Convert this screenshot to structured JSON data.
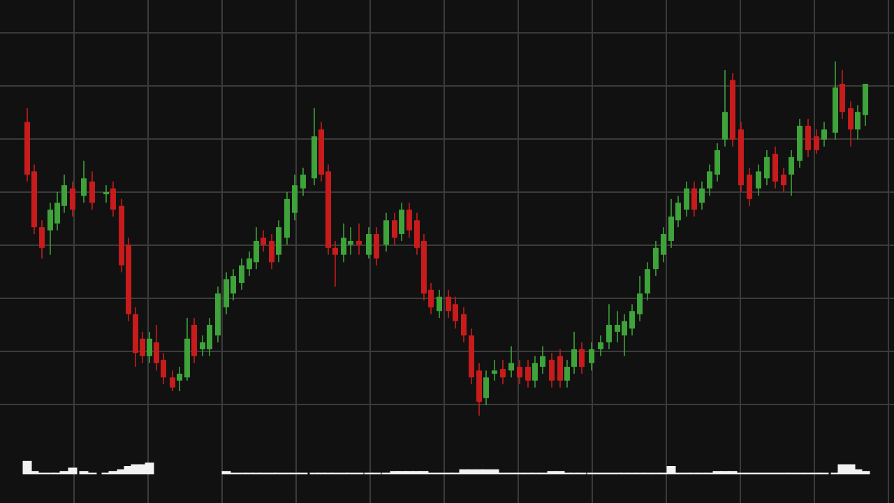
{
  "chart_data": {
    "type": "candlestick",
    "up_color": "#3ea33a",
    "down_color": "#c81c1c",
    "volume_color": "#f2f2f2",
    "grid": true,
    "xlim": [
      0,
      12
    ],
    "xticks": [
      1,
      2,
      3,
      4,
      5,
      6,
      7,
      8,
      9,
      10,
      11,
      12
    ],
    "ylim": [
      0,
      80
    ],
    "yticks": [
      10,
      20,
      30,
      40,
      50,
      60,
      70,
      80
    ],
    "y2lim": [
      0,
      10
    ],
    "x": [
      0.368,
      0.462,
      0.566,
      0.679,
      0.774,
      0.868,
      0.981,
      1.132,
      1.245,
      1.434,
      1.528,
      1.642,
      1.736,
      1.83,
      1.925,
      2.019,
      2.113,
      2.208,
      2.33,
      2.425,
      2.528,
      2.623,
      2.736,
      2.83,
      2.943,
      3.057,
      3.151,
      3.264,
      3.368,
      3.462,
      3.557,
      3.67,
      3.764,
      3.877,
      3.981,
      4.094,
      4.245,
      4.34,
      4.434,
      4.528,
      4.642,
      4.736,
      4.849,
      4.981,
      5.085,
      5.217,
      5.33,
      5.425,
      5.528,
      5.632,
      5.726,
      5.821,
      5.934,
      6.057,
      6.151,
      6.264,
      6.368,
      6.472,
      6.566,
      6.679,
      6.792,
      6.906,
      7.019,
      7.132,
      7.226,
      7.33,
      7.453,
      7.566,
      7.66,
      7.755,
      7.858,
      7.991,
      8.113,
      8.226,
      8.34,
      8.434,
      8.538,
      8.642,
      8.745,
      8.858,
      8.962,
      9.066,
      9.16,
      9.274,
      9.377,
      9.481,
      9.585,
      9.689,
      9.792,
      9.896,
      10.009,
      10.123,
      10.245,
      10.358,
      10.472,
      10.585,
      10.689,
      10.802,
      10.915,
      11.028,
      11.132,
      11.283,
      11.377,
      11.491,
      11.585,
      11.689
    ],
    "open": [
      63.2,
      53.9,
      43.4,
      42.8,
      44.1,
      47.4,
      50.7,
      49.3,
      52.0,
      49.6,
      50.7,
      47.4,
      40.1,
      27.0,
      22.4,
      19.1,
      21.7,
      18.4,
      15.1,
      14.5,
      15.1,
      25.0,
      20.4,
      20.4,
      23.0,
      28.3,
      30.9,
      32.9,
      35.5,
      36.8,
      41.4,
      40.8,
      38.2,
      41.4,
      46.1,
      50.7,
      52.6,
      61.8,
      53.9,
      39.5,
      38.2,
      40.1,
      40.8,
      38.2,
      42.1,
      40.1,
      44.7,
      42.1,
      46.7,
      44.7,
      40.8,
      31.6,
      27.6,
      30.3,
      28.9,
      27.0,
      23.0,
      16.4,
      11.2,
      15.8,
      16.7,
      16.4,
      17.1,
      17.1,
      14.5,
      17.1,
      18.4,
      19.1,
      14.5,
      17.1,
      20.4,
      17.8,
      20.4,
      21.7,
      23.7,
      23.0,
      24.3,
      27.0,
      30.9,
      35.5,
      38.2,
      40.8,
      44.7,
      46.7,
      50.7,
      48.0,
      50.7,
      53.3,
      59.9,
      71.1,
      61.8,
      53.3,
      50.7,
      52.6,
      57.2,
      53.3,
      53.3,
      55.9,
      62.5,
      60.5,
      59.9,
      61.2,
      70.4,
      65.8,
      61.8,
      64.5
    ],
    "high": [
      65.8,
      55.2,
      44.7,
      48.0,
      50.0,
      53.3,
      52.0,
      55.9,
      53.9,
      51.3,
      52.0,
      48.7,
      41.4,
      28.3,
      23.7,
      23.7,
      25.0,
      19.7,
      16.4,
      17.1,
      26.3,
      26.3,
      23.0,
      26.3,
      32.2,
      34.9,
      35.5,
      37.5,
      38.8,
      43.4,
      42.8,
      42.1,
      44.7,
      50.0,
      53.3,
      54.6,
      65.8,
      63.2,
      55.2,
      40.8,
      44.1,
      43.4,
      44.1,
      43.4,
      43.4,
      46.1,
      46.1,
      48.0,
      48.0,
      46.1,
      42.1,
      32.9,
      31.6,
      31.6,
      30.3,
      28.3,
      24.3,
      17.8,
      16.4,
      18.4,
      18.4,
      21.0,
      18.4,
      18.4,
      19.1,
      21.0,
      19.7,
      20.4,
      18.4,
      23.7,
      21.7,
      21.7,
      23.0,
      28.9,
      27.6,
      27.0,
      28.9,
      34.2,
      36.8,
      40.8,
      43.4,
      48.7,
      49.3,
      52.0,
      52.0,
      52.0,
      55.2,
      59.2,
      73.0,
      72.4,
      63.2,
      54.6,
      55.2,
      57.9,
      58.6,
      54.6,
      57.9,
      63.8,
      63.8,
      61.8,
      63.2,
      74.6,
      73.0,
      67.1,
      66.4,
      70.4
    ],
    "low": [
      52.0,
      42.1,
      37.5,
      38.2,
      42.8,
      46.1,
      45.4,
      48.0,
      46.7,
      48.0,
      45.4,
      34.9,
      25.7,
      17.1,
      17.8,
      17.8,
      16.4,
      13.8,
      12.5,
      12.5,
      14.5,
      17.8,
      19.1,
      19.1,
      21.7,
      27.0,
      29.6,
      31.6,
      34.2,
      35.5,
      38.8,
      35.5,
      36.8,
      40.1,
      44.7,
      49.3,
      51.3,
      52.0,
      38.2,
      32.2,
      36.8,
      38.2,
      38.2,
      37.5,
      36.2,
      38.8,
      40.1,
      40.8,
      41.4,
      38.2,
      29.6,
      27.0,
      26.3,
      26.3,
      24.3,
      21.7,
      13.8,
      7.9,
      9.9,
      14.5,
      13.8,
      15.1,
      13.8,
      13.2,
      13.2,
      15.8,
      13.2,
      13.2,
      13.2,
      15.8,
      15.8,
      16.4,
      19.1,
      20.4,
      21.7,
      19.1,
      23.0,
      25.7,
      29.6,
      34.2,
      36.8,
      39.5,
      43.4,
      45.4,
      45.4,
      46.7,
      49.3,
      52.0,
      58.6,
      58.6,
      50.0,
      47.4,
      49.3,
      51.3,
      50.7,
      50.0,
      49.3,
      54.6,
      56.6,
      57.2,
      58.6,
      59.9,
      63.8,
      58.6,
      59.9,
      62.5
    ],
    "close": [
      53.3,
      43.4,
      39.5,
      46.7,
      48.0,
      51.3,
      46.7,
      52.6,
      48.0,
      50.0,
      46.7,
      36.2,
      27.0,
      19.7,
      19.1,
      22.4,
      17.8,
      15.1,
      13.2,
      15.8,
      22.4,
      19.1,
      21.7,
      25.0,
      30.9,
      33.6,
      34.2,
      36.2,
      37.5,
      40.8,
      40.1,
      36.8,
      43.4,
      48.7,
      51.3,
      53.3,
      60.5,
      53.3,
      39.5,
      38.2,
      41.4,
      40.8,
      40.1,
      42.1,
      37.5,
      44.7,
      41.4,
      46.7,
      42.8,
      39.5,
      30.9,
      28.3,
      30.3,
      27.6,
      25.7,
      23.0,
      15.1,
      10.5,
      15.1,
      16.4,
      15.1,
      17.8,
      15.1,
      14.5,
      17.8,
      19.1,
      14.5,
      14.5,
      17.1,
      20.4,
      17.1,
      20.4,
      21.7,
      25.0,
      25.0,
      25.7,
      27.6,
      30.9,
      35.5,
      39.5,
      42.1,
      45.4,
      48.0,
      50.7,
      46.7,
      50.7,
      53.9,
      57.9,
      65.1,
      59.9,
      51.3,
      48.7,
      53.9,
      56.6,
      52.0,
      51.3,
      56.6,
      62.5,
      57.9,
      57.9,
      61.8,
      69.7,
      65.1,
      61.8,
      65.1,
      70.4
    ],
    "volume": [
      8,
      2,
      1,
      1,
      1,
      2,
      4,
      2,
      1,
      1,
      2,
      3,
      5,
      6,
      6,
      7,
      0,
      0,
      0,
      0,
      0,
      0,
      0,
      0,
      0,
      2,
      1,
      1,
      1,
      1,
      1,
      1,
      1,
      1,
      1,
      1,
      1,
      1,
      1,
      1,
      1,
      1,
      1,
      1,
      1,
      1,
      2,
      2,
      2,
      2,
      2,
      1,
      1,
      1,
      1,
      3,
      3,
      3,
      3,
      3,
      1,
      1,
      1,
      1,
      1,
      1,
      2,
      2,
      1,
      1,
      1,
      1,
      1,
      1,
      1,
      1,
      1,
      1,
      1,
      1,
      1,
      5,
      1,
      1,
      1,
      1,
      1,
      2,
      2,
      2,
      1,
      1,
      1,
      1,
      1,
      1,
      1,
      1,
      1,
      1,
      1,
      1,
      6,
      6,
      3,
      2
    ]
  }
}
